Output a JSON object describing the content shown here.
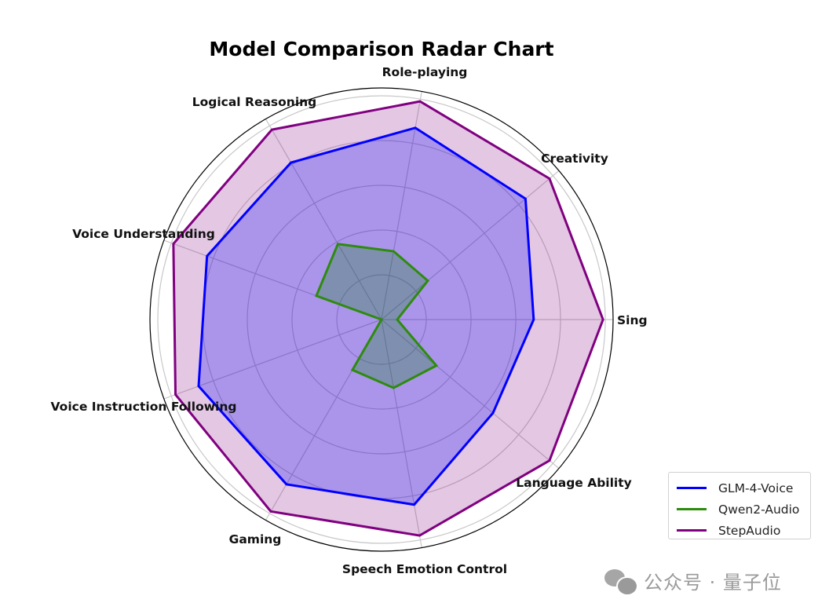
{
  "chart_data": {
    "type": "radar",
    "title": "Model Comparison Radar Chart",
    "categories": [
      "Sing",
      "Creativity",
      "Role-playing",
      "Logical Reasoning",
      "Voice Understanding",
      "Voice Instruction Following",
      "Gaming",
      "Speech Emotion Control",
      "Language Ability"
    ],
    "rlim": [
      0,
      1.03
    ],
    "rgrid": [
      0.2,
      0.4,
      0.6,
      0.8,
      1.0
    ],
    "grid": true,
    "legend_position": "lower right",
    "series": [
      {
        "name": "GLM-4-Voice",
        "color": "#0000ff",
        "fill": "#0000ff",
        "fill_opacity": 0.25,
        "values": [
          0.68,
          0.84,
          0.87,
          0.81,
          0.83,
          0.87,
          0.85,
          0.84,
          0.65
        ]
      },
      {
        "name": "Qwen2-Audio",
        "color": "#2e8b0e",
        "fill": "#008000",
        "fill_opacity": 0.25,
        "values": [
          0.07,
          0.27,
          0.31,
          0.39,
          0.31,
          0.0,
          0.26,
          0.31,
          0.32
        ]
      },
      {
        "name": "StepAudio",
        "color": "#800080",
        "fill": "#800080",
        "fill_opacity": 0.22,
        "values": [
          0.99,
          0.98,
          0.99,
          0.98,
          0.99,
          0.98,
          0.99,
          0.98,
          0.98
        ]
      }
    ]
  },
  "legend": {
    "items": [
      {
        "label": "GLM-4-Voice",
        "color": "#0000ff"
      },
      {
        "label": "Qwen2-Audio",
        "color": "#2e8b0e"
      },
      {
        "label": "StepAudio",
        "color": "#800080"
      }
    ]
  },
  "watermark": {
    "icon": "wechat-icon",
    "text": "公众号 · 量子位"
  }
}
